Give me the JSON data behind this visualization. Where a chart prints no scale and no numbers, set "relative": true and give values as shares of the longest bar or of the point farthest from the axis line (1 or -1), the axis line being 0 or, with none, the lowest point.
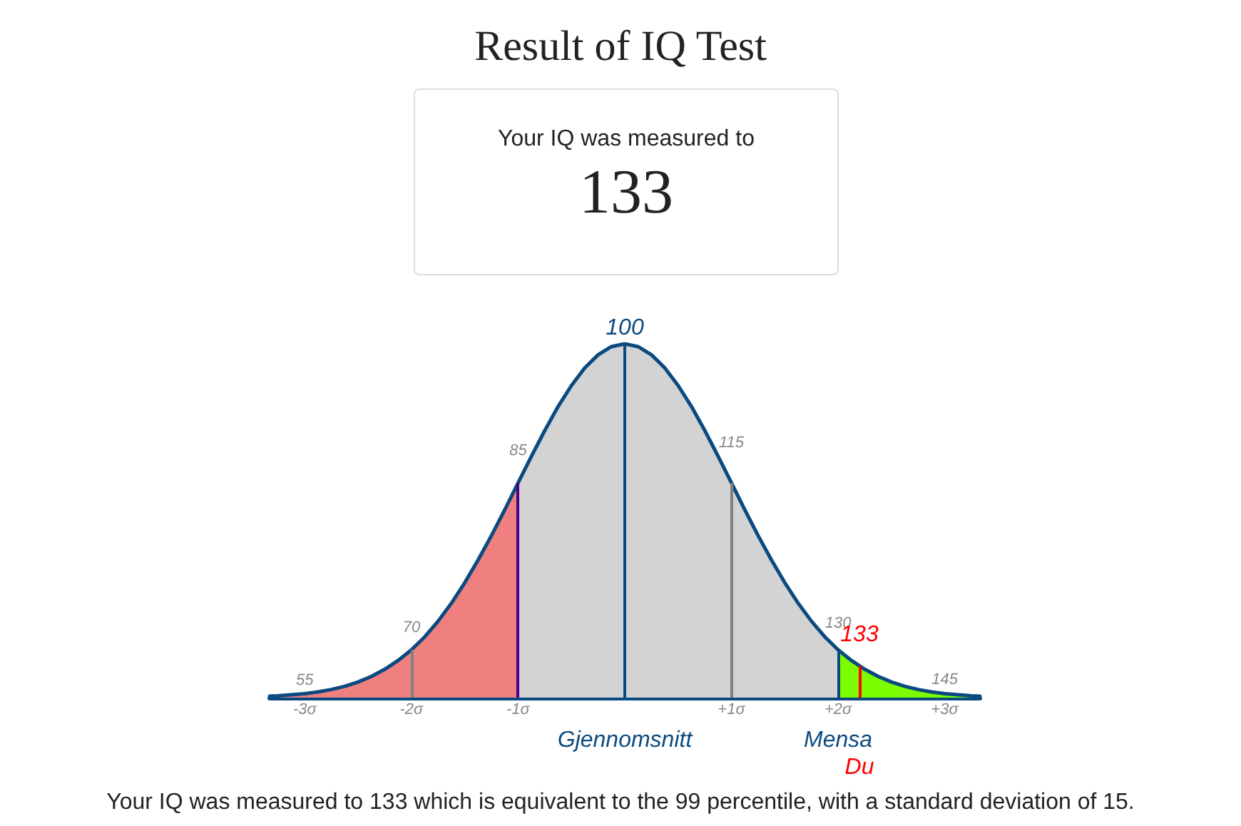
{
  "chart_data": {
    "type": "area",
    "title": "Result of IQ Test",
    "subtitle": "Your IQ was measured to",
    "relative": true,
    "series": [
      {
        "color": "#0b4a80",
        "x": [
          -3.33,
          -3.25,
          -3.125,
          -3,
          -2.875,
          -2.75,
          -2.625,
          -2.5,
          -2.375,
          -2.25,
          -2.125,
          -2,
          -1.875,
          -1.75,
          -1.625,
          -1.5,
          -1.375,
          -1.25,
          -1.125,
          -1,
          -0.875,
          -0.75,
          -0.625,
          -0.5,
          -0.375,
          -0.25,
          -0.125,
          0,
          0.125,
          0.25,
          0.375,
          0.5,
          0.625,
          0.75,
          0.875,
          1,
          1.125,
          1.25,
          1.375,
          1.5,
          1.625,
          1.75,
          1.875,
          2,
          2.125,
          2.25,
          2.375,
          2.5,
          2.625,
          2.75,
          2.875,
          3,
          3.125,
          3.25,
          3.33
        ],
        "values": [
          0.004,
          0.005,
          0.008,
          0.011,
          0.016,
          0.023,
          0.032,
          0.044,
          0.06,
          0.08,
          0.105,
          0.135,
          0.172,
          0.216,
          0.267,
          0.325,
          0.389,
          0.458,
          0.531,
          0.607,
          0.682,
          0.755,
          0.823,
          0.882,
          0.932,
          0.969,
          0.992,
          1,
          0.992,
          0.969,
          0.932,
          0.882,
          0.823,
          0.755,
          0.682,
          0.607,
          0.531,
          0.458,
          0.389,
          0.325,
          0.267,
          0.216,
          0.172,
          0.135,
          0.105,
          0.08,
          0.06,
          0.044,
          0.032,
          0.023,
          0.016,
          0.011,
          0.008,
          0.005,
          0.004
        ]
      },
      {
        "color": "#f08080",
        "x": [
          -3.33,
          -3.25,
          -3.125,
          -3,
          -2.875,
          -2.75,
          -2.625,
          -2.5,
          -2.375,
          -2.25,
          -2.125,
          -2,
          -1.875,
          -1.75,
          -1.625,
          -1.5,
          -1.375,
          -1.25,
          -1.125,
          -1
        ],
        "values": [
          0.004,
          0.005,
          0.008,
          0.011,
          0.016,
          0.023,
          0.032,
          0.044,
          0.06,
          0.08,
          0.105,
          0.135,
          0.172,
          0.216,
          0.267,
          0.325,
          0.389,
          0.458,
          0.531,
          0.607
        ]
      },
      {
        "color": "#7cfc00",
        "x": [
          2,
          2.125,
          2.25,
          2.375,
          2.5,
          2.625,
          2.75,
          2.875,
          3,
          3.125,
          3.25,
          3.33
        ],
        "values": [
          0.135,
          0.105,
          0.08,
          0.06,
          0.044,
          0.032,
          0.023,
          0.016,
          0.011,
          0.008,
          0.005,
          0.004
        ]
      }
    ],
    "xlim": [
      -3.33,
      3.33
    ],
    "xticks": [
      {
        "value": -3,
        "label": "-3σ"
      },
      {
        "value": -2,
        "label": "-2σ"
      },
      {
        "value": -1,
        "label": "-1σ"
      },
      {
        "value": 1,
        "label": "+1σ"
      },
      {
        "value": 2,
        "label": "+2σ"
      },
      {
        "value": 3,
        "label": "+3σ"
      }
    ],
    "ref_lines": [
      {
        "axis": "x",
        "value": -2,
        "color": "#808080"
      },
      {
        "axis": "x",
        "value": -1,
        "color": "#4b0082"
      },
      {
        "axis": "x",
        "value": 0,
        "label": "Gjennomsnitt",
        "color": "#0b4a80"
      },
      {
        "axis": "x",
        "value": 1,
        "color": "#808080"
      },
      {
        "axis": "x",
        "value": 2,
        "label": "Mensa",
        "color": "#0b4a80"
      },
      {
        "axis": "x",
        "value": 2.2,
        "label": "Du",
        "color": "#ff0000"
      }
    ],
    "annotations": [
      "133",
      {
        "text": "55",
        "x": -3,
        "y": 0.011
      },
      {
        "text": "70",
        "x": -2,
        "y": 0.135
      },
      {
        "text": "85",
        "x": -1,
        "y": 0.607
      },
      {
        "text": "100",
        "x": 0,
        "y": 1
      },
      {
        "text": "115",
        "x": 1,
        "y": 0.607
      },
      {
        "text": "130",
        "x": 2,
        "y": 0.135
      },
      {
        "text": "133",
        "x": 2.2,
        "y": 0.09
      },
      {
        "text": "145",
        "x": 3,
        "y": 0.011
      },
      "Your IQ was measured to 133 which is equivalent to the 99 percentile, with a standard deviation of 15."
    ]
  }
}
